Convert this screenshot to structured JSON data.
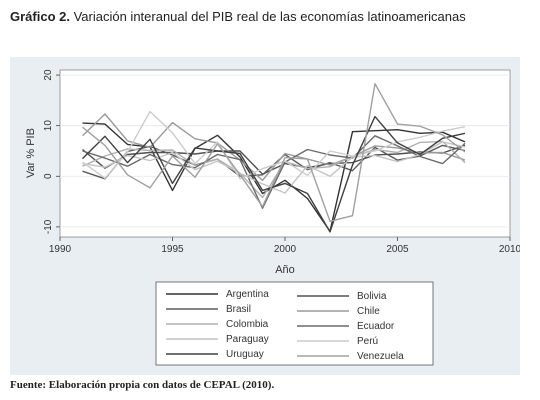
{
  "heading": {
    "number": "Gráfico 2.",
    "text": "Variación interanual del PIB real de las economías latinoamericanas"
  },
  "source": "Fuente: Elaboración propia con datos de CEPAL (2010).",
  "chart_data": {
    "type": "line",
    "xlabel": "Año",
    "ylabel": "Var % PIB",
    "xlim": [
      1990,
      2010
    ],
    "ylim": [
      -12,
      21
    ],
    "xticks": [
      1990,
      1995,
      2000,
      2005,
      2010
    ],
    "yticks": [
      -10,
      0,
      10,
      20
    ],
    "grid": "horizontal",
    "legend_position": "bottom",
    "x": [
      1991,
      1992,
      1993,
      1994,
      1995,
      1996,
      1997,
      1998,
      1999,
      2000,
      2001,
      2002,
      2003,
      2004,
      2005,
      2006,
      2007,
      2008
    ],
    "series": [
      {
        "name": "Argentina",
        "color": "#333333",
        "values": [
          10.5,
          10.3,
          6.3,
          5.8,
          -2.8,
          5.5,
          8.1,
          3.8,
          -3.4,
          -0.8,
          -4.4,
          -10.9,
          8.8,
          9.0,
          9.2,
          8.5,
          8.7,
          6.8
        ]
      },
      {
        "name": "Bolivia",
        "color": "#505050",
        "values": [
          5.3,
          1.6,
          4.3,
          4.7,
          4.7,
          4.4,
          5.0,
          5.0,
          0.4,
          2.5,
          1.7,
          2.5,
          2.7,
          4.2,
          4.4,
          4.8,
          4.6,
          6.1
        ]
      },
      {
        "name": "Brasil",
        "color": "#5a5a5a",
        "values": [
          1.0,
          -0.5,
          4.9,
          5.9,
          4.2,
          2.2,
          3.4,
          0.0,
          0.3,
          4.3,
          1.3,
          2.7,
          1.1,
          5.7,
          3.2,
          4.0,
          6.1,
          5.1
        ]
      },
      {
        "name": "Chile",
        "color": "#9a9a9a",
        "values": [
          8.0,
          12.3,
          7.0,
          5.7,
          10.6,
          7.4,
          6.6,
          3.2,
          -0.8,
          4.5,
          3.4,
          2.2,
          3.9,
          6.0,
          5.6,
          4.6,
          4.7,
          3.2
        ]
      },
      {
        "name": "Colombia",
        "color": "#b0b0b0",
        "values": [
          2.0,
          4.0,
          5.4,
          5.1,
          5.2,
          2.1,
          3.4,
          0.6,
          -4.2,
          2.9,
          1.5,
          1.9,
          3.9,
          5.3,
          4.7,
          6.7,
          6.9,
          2.7
        ]
      },
      {
        "name": "Ecuador",
        "color": "#6a6a6a",
        "values": [
          5.0,
          3.6,
          2.0,
          4.3,
          2.3,
          1.7,
          4.3,
          3.3,
          -6.3,
          2.8,
          5.3,
          4.2,
          3.6,
          8.0,
          6.0,
          3.9,
          2.5,
          6.5
        ]
      },
      {
        "name": "Paraguay",
        "color": "#c4c4c4",
        "values": [
          2.5,
          1.8,
          4.1,
          3.1,
          4.7,
          1.3,
          3.0,
          0.6,
          -1.5,
          -3.3,
          2.1,
          0.0,
          3.8,
          4.1,
          2.9,
          4.3,
          6.8,
          5.8
        ]
      },
      {
        "name": "Perú",
        "color": "#cccccc",
        "values": [
          2.8,
          -0.4,
          4.8,
          12.8,
          8.6,
          2.5,
          6.8,
          -0.5,
          1.5,
          3.0,
          0.2,
          5.0,
          4.0,
          5.0,
          6.8,
          7.7,
          8.9,
          9.8
        ]
      },
      {
        "name": "Uruguay",
        "color": "#404040",
        "values": [
          3.5,
          7.9,
          2.7,
          7.3,
          -1.4,
          5.6,
          5.0,
          4.5,
          -2.8,
          -1.4,
          -3.4,
          -11.0,
          2.2,
          11.8,
          6.6,
          4.3,
          7.5,
          8.5
        ]
      },
      {
        "name": "Venezuela",
        "color": "#a0a0a0",
        "values": [
          9.7,
          6.1,
          0.3,
          -2.3,
          4.0,
          -0.2,
          6.4,
          0.3,
          -6.0,
          3.7,
          3.4,
          -8.9,
          -7.8,
          18.3,
          10.3,
          9.9,
          8.2,
          4.8
        ]
      }
    ]
  }
}
